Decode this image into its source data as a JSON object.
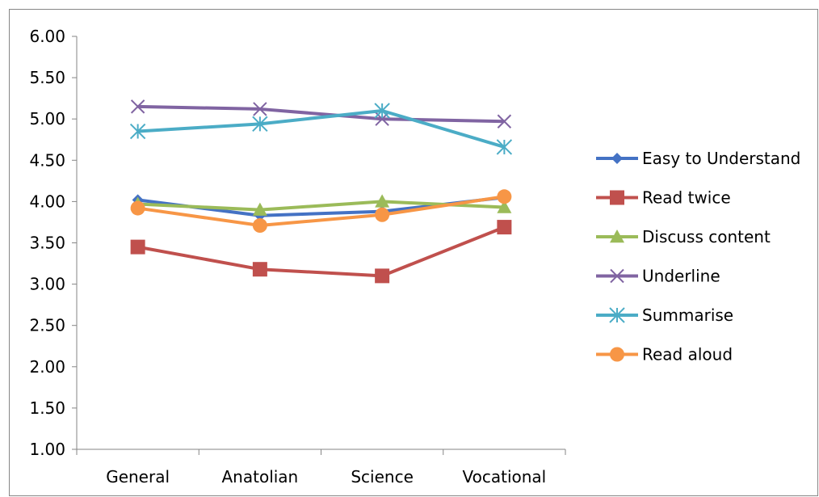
{
  "chart_data": {
    "type": "line",
    "categories": [
      "General",
      "Anatolian",
      "Science",
      "Vocational"
    ],
    "ylim": [
      1.0,
      6.0
    ],
    "yticks": [
      "1.00",
      "1.50",
      "2.00",
      "2.50",
      "3.00",
      "3.50",
      "4.00",
      "4.50",
      "5.00",
      "5.50",
      "6.00"
    ],
    "grid": false,
    "legend_position": "right",
    "series": [
      {
        "name": "Easy to Understand",
        "values": [
          4.02,
          3.83,
          3.88,
          4.05
        ],
        "color": "#4472C4",
        "marker": "diamond"
      },
      {
        "name": "Read twice",
        "values": [
          3.45,
          3.18,
          3.1,
          3.69
        ],
        "color": "#C0504D",
        "marker": "square"
      },
      {
        "name": "Discuss content",
        "values": [
          3.97,
          3.9,
          4.0,
          3.93
        ],
        "color": "#9BBB59",
        "marker": "triangle"
      },
      {
        "name": "Underline",
        "values": [
          5.15,
          5.12,
          5.0,
          4.97
        ],
        "color": "#8064A2",
        "marker": "x"
      },
      {
        "name": "Summarise",
        "values": [
          4.85,
          4.94,
          5.1,
          4.66
        ],
        "color": "#4BACC6",
        "marker": "star"
      },
      {
        "name": "Read aloud",
        "values": [
          3.92,
          3.71,
          3.84,
          4.06
        ],
        "color": "#F79646",
        "marker": "circle"
      }
    ]
  }
}
